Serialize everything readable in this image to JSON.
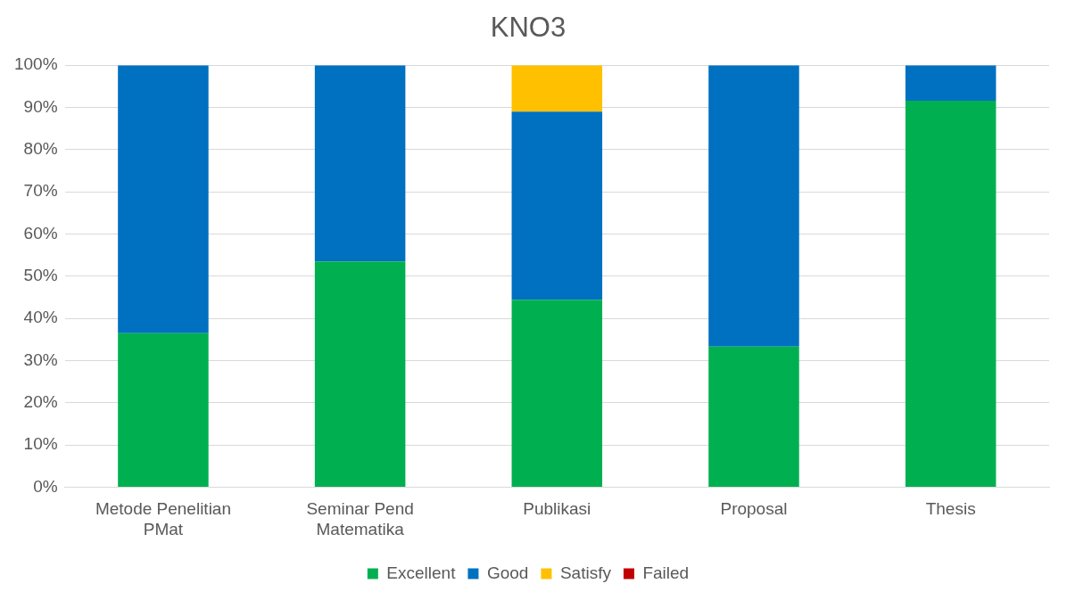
{
  "chart_data": {
    "type": "bar",
    "title": "KNO3",
    "stacked": true,
    "categories": [
      "Metode Penelitian PMat",
      "Seminar Pend Matematika",
      "Publikasi",
      "Proposal",
      "Thesis"
    ],
    "series": [
      {
        "name": "Excellent",
        "color": "#00b050",
        "values": [
          36.5,
          53.5,
          44.4,
          33.3,
          91.6
        ]
      },
      {
        "name": "Good",
        "color": "#0070c0",
        "values": [
          63.5,
          46.5,
          44.6,
          66.7,
          8.4
        ]
      },
      {
        "name": "Satisfy",
        "color": "#ffc000",
        "values": [
          0,
          0,
          11,
          0,
          0
        ]
      },
      {
        "name": "Failed",
        "color": "#c00000",
        "values": [
          0,
          0,
          0,
          0,
          0
        ]
      }
    ],
    "ylim": [
      0,
      100
    ],
    "yticks": [
      {
        "value": 0,
        "label": "0%"
      },
      {
        "value": 10,
        "label": "10%"
      },
      {
        "value": 20,
        "label": "20%"
      },
      {
        "value": 30,
        "label": "30%"
      },
      {
        "value": 40,
        "label": "40%"
      },
      {
        "value": 50,
        "label": "50%"
      },
      {
        "value": 60,
        "label": "60%"
      },
      {
        "value": 70,
        "label": "70%"
      },
      {
        "value": 80,
        "label": "80%"
      },
      {
        "value": 90,
        "label": "90%"
      },
      {
        "value": 100,
        "label": "100%"
      }
    ],
    "grid": "y",
    "legend": "bottom"
  }
}
